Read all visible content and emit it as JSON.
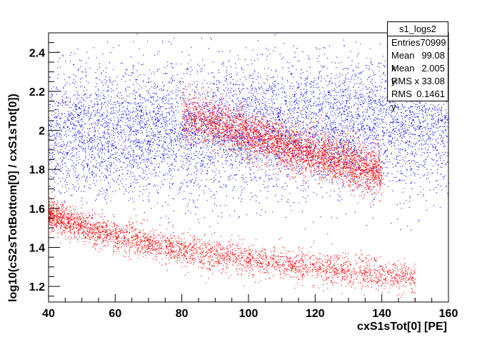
{
  "chart_data": {
    "type": "scatter",
    "title": "",
    "xlabel": "cxS1sTot[0]  [PE]",
    "ylabel": "log10(cS2sTotBottom[0] / cxS1sTot[0])",
    "xlim": [
      40,
      160
    ],
    "ylim": [
      1.12,
      2.5
    ],
    "x_ticks": [
      40,
      60,
      80,
      100,
      120,
      140,
      160
    ],
    "x_tick_labels": [
      "40",
      "60",
      "80",
      "100",
      "120",
      "140",
      "160"
    ],
    "y_ticks": [
      1.2,
      1.4,
      1.6,
      1.8,
      2.0,
      2.2,
      2.4
    ],
    "y_tick_labels": [
      "1.2",
      "1.4",
      "1.6",
      "1.8",
      "2",
      "2.2",
      "2.4"
    ],
    "grid": false,
    "series": [
      {
        "color": "#0000ff",
        "description_points": [
          [
            40,
            1.98
          ],
          [
            60,
            1.99
          ],
          [
            80,
            2.0
          ],
          [
            100,
            2.02
          ],
          [
            120,
            2.03
          ],
          [
            140,
            2.04
          ],
          [
            160,
            2.04
          ]
        ],
        "y_spread": 0.17
      },
      {
        "color": "#ff0000",
        "description_points": [
          [
            80,
            2.08
          ],
          [
            90,
            2.04
          ],
          [
            100,
            1.98
          ],
          [
            110,
            1.93
          ],
          [
            120,
            1.88
          ],
          [
            130,
            1.83
          ],
          [
            140,
            1.78
          ]
        ],
        "y_spread": 0.06
      },
      {
        "color": "#ff0000",
        "description_points": [
          [
            40,
            1.57
          ],
          [
            50,
            1.51
          ],
          [
            60,
            1.46
          ],
          [
            70,
            1.42
          ],
          [
            80,
            1.39
          ],
          [
            90,
            1.36
          ],
          [
            100,
            1.34
          ],
          [
            120,
            1.3
          ],
          [
            140,
            1.26
          ],
          [
            150,
            1.24
          ]
        ],
        "y_spread": 0.04
      }
    ],
    "stats": {
      "name": "s1_logs2",
      "rows": [
        {
          "label": "Entries",
          "value": "70999"
        },
        {
          "label": "Mean x",
          "value": "99.08"
        },
        {
          "label": "Mean y",
          "value": "2.005"
        },
        {
          "label": "RMS x",
          "value": "33.08"
        },
        {
          "label": "RMS y",
          "value": "0.1461"
        }
      ]
    }
  }
}
